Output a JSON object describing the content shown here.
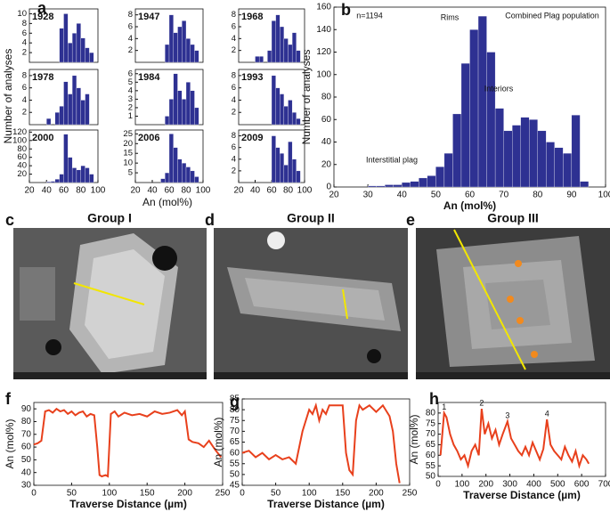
{
  "figure": {
    "panel_labels": [
      "a",
      "b",
      "c",
      "d",
      "e",
      "f",
      "g",
      "h"
    ],
    "a_ylabel": "Number of analyses",
    "a_xlabel": "An (mol%)",
    "images": [
      {
        "title": "Group I"
      },
      {
        "title": "Group II"
      },
      {
        "title": "Group III"
      }
    ]
  },
  "chart_data": [
    {
      "type": "histogram",
      "title": "1928",
      "bins": [
        20,
        25,
        30,
        35,
        40,
        45,
        50,
        55,
        60,
        65,
        70,
        75,
        80,
        85,
        90,
        95,
        100
      ],
      "values": [
        0,
        0,
        0,
        0,
        0,
        0,
        0,
        7,
        10,
        4,
        6,
        8,
        5,
        3,
        2,
        0
      ],
      "color": "#2e3192",
      "xlim": [
        20,
        100
      ],
      "ylim": [
        0,
        11
      ],
      "yticks": [
        2,
        4,
        6,
        8,
        10
      ]
    },
    {
      "type": "histogram",
      "title": "1947",
      "bins": [
        20,
        25,
        30,
        35,
        40,
        45,
        50,
        55,
        60,
        65,
        70,
        75,
        80,
        85,
        90,
        95,
        100
      ],
      "values": [
        0,
        0,
        0,
        0,
        0,
        0,
        0,
        3,
        8,
        5,
        6,
        7,
        4,
        3,
        2,
        0
      ],
      "color": "#2e3192",
      "xlim": [
        20,
        100
      ],
      "ylim": [
        0,
        9
      ],
      "yticks": [
        2,
        4,
        6,
        8
      ]
    },
    {
      "type": "histogram",
      "title": "1968",
      "bins": [
        20,
        25,
        30,
        35,
        40,
        45,
        50,
        55,
        60,
        65,
        70,
        75,
        80,
        85,
        90,
        95,
        100
      ],
      "values": [
        0,
        0,
        0,
        0,
        1,
        1,
        0,
        2,
        7,
        8,
        6,
        4,
        3,
        5,
        2,
        0
      ],
      "color": "#2e3192",
      "xlim": [
        20,
        100
      ],
      "ylim": [
        0,
        9
      ],
      "yticks": [
        2,
        4,
        6,
        8
      ]
    },
    {
      "type": "histogram",
      "title": "1978",
      "bins": [
        20,
        25,
        30,
        35,
        40,
        45,
        50,
        55,
        60,
        65,
        70,
        75,
        80,
        85,
        90,
        95,
        100
      ],
      "values": [
        0,
        0,
        0,
        0,
        1,
        0,
        2,
        3,
        7,
        5,
        8,
        6,
        4,
        5,
        0,
        0
      ],
      "color": "#2e3192",
      "xlim": [
        20,
        100
      ],
      "ylim": [
        0,
        9
      ],
      "yticks": [
        2,
        4,
        6,
        8
      ]
    },
    {
      "type": "histogram",
      "title": "1984",
      "bins": [
        20,
        25,
        30,
        35,
        40,
        45,
        50,
        55,
        60,
        65,
        70,
        75,
        80,
        85,
        90,
        95,
        100
      ],
      "values": [
        0,
        0,
        0,
        0,
        0,
        0,
        0,
        1,
        3,
        6,
        4,
        3,
        5,
        4,
        2,
        0
      ],
      "color": "#2e3192",
      "xlim": [
        20,
        100
      ],
      "ylim": [
        0,
        6.5
      ],
      "yticks": [
        1,
        2,
        3,
        4,
        5,
        6
      ]
    },
    {
      "type": "histogram",
      "title": "1993",
      "bins": [
        20,
        25,
        30,
        35,
        40,
        45,
        50,
        55,
        60,
        65,
        70,
        75,
        80,
        85,
        90,
        95,
        100
      ],
      "values": [
        0,
        0,
        0,
        0,
        0,
        0,
        0,
        0,
        8,
        6,
        5,
        3,
        4,
        2,
        1,
        0
      ],
      "color": "#2e3192",
      "xlim": [
        20,
        100
      ],
      "ylim": [
        0,
        9
      ],
      "yticks": [
        2,
        4,
        6,
        8
      ]
    },
    {
      "type": "histogram",
      "title": "2000",
      "bins": [
        20,
        25,
        30,
        35,
        40,
        45,
        50,
        55,
        60,
        65,
        70,
        75,
        80,
        85,
        90,
        95,
        100
      ],
      "values": [
        0,
        0,
        0,
        0,
        2,
        3,
        8,
        20,
        115,
        60,
        35,
        30,
        40,
        35,
        20,
        0
      ],
      "color": "#2e3192",
      "xlim": [
        20,
        100
      ],
      "xticks": [
        20,
        40,
        60,
        80,
        100
      ],
      "ylim": [
        0,
        125
      ],
      "yticks": [
        20,
        40,
        60,
        80,
        100,
        120
      ]
    },
    {
      "type": "histogram",
      "title": "2006",
      "bins": [
        20,
        25,
        30,
        35,
        40,
        45,
        50,
        55,
        60,
        65,
        70,
        75,
        80,
        85,
        90,
        95,
        100
      ],
      "values": [
        0,
        0,
        0,
        0,
        0,
        0,
        2,
        5,
        25,
        18,
        12,
        10,
        8,
        6,
        3,
        0
      ],
      "color": "#2e3192",
      "xlim": [
        20,
        100
      ],
      "xticks": [
        20,
        40,
        60,
        80,
        100
      ],
      "ylim": [
        0,
        27
      ],
      "yticks": [
        5,
        10,
        15,
        20,
        25
      ]
    },
    {
      "type": "histogram",
      "title": "2009",
      "bins": [
        20,
        25,
        30,
        35,
        40,
        45,
        50,
        55,
        60,
        65,
        70,
        75,
        80,
        85,
        90,
        95,
        100
      ],
      "values": [
        0,
        0,
        0,
        0,
        0,
        0,
        0,
        0,
        8,
        6,
        5,
        3,
        7,
        4,
        2,
        0
      ],
      "color": "#2e3192",
      "xlim": [
        20,
        100
      ],
      "xticks": [
        20,
        40,
        60,
        80,
        100
      ],
      "ylim": [
        0,
        9
      ],
      "yticks": [
        2,
        4,
        6,
        8
      ]
    },
    {
      "type": "histogram",
      "xlabel": "An (mol%)",
      "ylabel": "Number of analyses",
      "annotations": [
        "n=1194",
        "Rims",
        "Combined Plag population",
        "Interiors",
        "Interstitial plag"
      ],
      "bins": [
        30,
        32.5,
        35,
        37.5,
        40,
        42.5,
        45,
        47.5,
        50,
        52.5,
        55,
        57.5,
        60,
        62.5,
        65,
        67.5,
        70,
        72.5,
        75,
        77.5,
        80,
        82.5,
        85,
        87.5,
        90,
        92.5,
        95
      ],
      "values": [
        1,
        1,
        2,
        2,
        4,
        5,
        8,
        10,
        18,
        30,
        65,
        110,
        140,
        152,
        120,
        70,
        50,
        55,
        62,
        60,
        50,
        40,
        35,
        30,
        64,
        5
      ],
      "color": "#2e3192",
      "xlim": [
        20,
        100
      ],
      "xticks": [
        20,
        30,
        40,
        50,
        60,
        70,
        80,
        90,
        100
      ],
      "ylim": [
        0,
        160
      ],
      "yticks": [
        0,
        20,
        40,
        60,
        80,
        100,
        120,
        140,
        160
      ]
    },
    {
      "type": "line",
      "xlabel": "Traverse Distance (µm)",
      "ylabel": "An (mol%)",
      "color": "#e8401c",
      "x": [
        0,
        5,
        10,
        15,
        20,
        25,
        30,
        35,
        40,
        45,
        50,
        55,
        60,
        65,
        70,
        75,
        80,
        84,
        87,
        90,
        95,
        98,
        102,
        107,
        112,
        120,
        130,
        140,
        150,
        160,
        170,
        180,
        190,
        196,
        200,
        205,
        210,
        218,
        225,
        232,
        240,
        248
      ],
      "values": [
        62,
        63,
        65,
        88,
        89,
        87,
        90,
        88,
        89,
        86,
        88,
        85,
        87,
        88,
        84,
        86,
        85,
        60,
        38,
        37,
        38,
        37,
        86,
        88,
        84,
        87,
        85,
        86,
        84,
        88,
        86,
        87,
        89,
        85,
        88,
        66,
        64,
        63,
        60,
        65,
        58,
        52
      ],
      "xlim": [
        0,
        250
      ],
      "xticks": [
        0,
        50,
        100,
        150,
        200,
        250
      ],
      "ylim": [
        30,
        95
      ],
      "yticks": [
        30,
        40,
        50,
        60,
        70,
        80,
        90
      ]
    },
    {
      "type": "line",
      "xlabel": "Traverse Distance (µm)",
      "ylabel": "An (mol%)",
      "color": "#e8401c",
      "x": [
        0,
        10,
        20,
        30,
        40,
        50,
        60,
        70,
        80,
        90,
        100,
        105,
        110,
        115,
        120,
        125,
        130,
        140,
        150,
        155,
        160,
        165,
        170,
        175,
        180,
        190,
        200,
        210,
        220,
        225,
        230,
        235
      ],
      "values": [
        60,
        61,
        58,
        60,
        57,
        59,
        57,
        58,
        55,
        70,
        80,
        78,
        82,
        75,
        80,
        78,
        82,
        82,
        82,
        60,
        52,
        50,
        75,
        82,
        80,
        82,
        79,
        82,
        77,
        70,
        55,
        46
      ],
      "xlim": [
        0,
        250
      ],
      "xticks": [
        0,
        50,
        100,
        150,
        200,
        250
      ],
      "ylim": [
        45,
        85
      ],
      "yticks": [
        45,
        50,
        55,
        60,
        65,
        70,
        75,
        80,
        85
      ]
    },
    {
      "type": "line",
      "xlabel": "Traverse Distance (µm)",
      "ylabel": "An (mol%)",
      "color": "#e8401c",
      "annotations": [
        "1",
        "2",
        "3",
        "4"
      ],
      "x": [
        10,
        25,
        35,
        50,
        65,
        80,
        95,
        110,
        125,
        140,
        155,
        170,
        182,
        195,
        210,
        225,
        240,
        255,
        270,
        290,
        305,
        320,
        335,
        350,
        365,
        380,
        395,
        410,
        425,
        440,
        455,
        470,
        485,
        500,
        515,
        530,
        545,
        560,
        575,
        590,
        605,
        620,
        630
      ],
      "values": [
        60,
        80,
        78,
        70,
        65,
        62,
        58,
        60,
        55,
        62,
        65,
        60,
        82,
        70,
        75,
        68,
        72,
        65,
        70,
        76,
        68,
        65,
        62,
        60,
        64,
        60,
        66,
        62,
        58,
        63,
        77,
        65,
        62,
        60,
        58,
        64,
        60,
        57,
        62,
        55,
        60,
        58,
        56
      ],
      "xlim": [
        0,
        700
      ],
      "xticks": [
        0,
        100,
        200,
        300,
        400,
        500,
        600,
        700
      ],
      "ylim": [
        50,
        85
      ],
      "yticks": [
        50,
        55,
        60,
        65,
        70,
        75,
        80
      ]
    }
  ]
}
